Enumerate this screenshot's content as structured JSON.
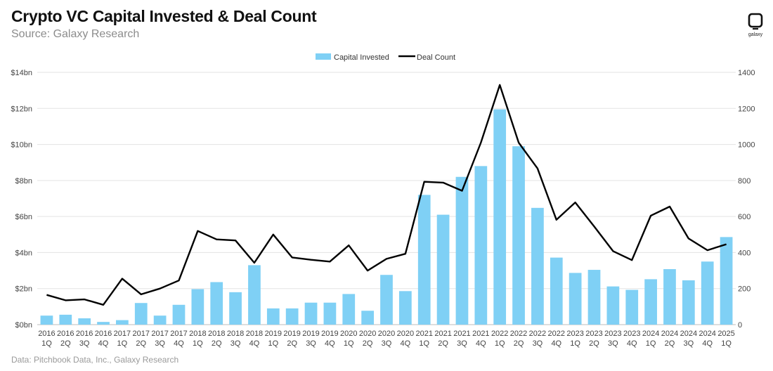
{
  "header": {
    "title": "Crypto VC Capital Invested & Deal Count",
    "subtitle": "Source: Galaxy Research"
  },
  "footer": {
    "note": "Data: Pitchbook Data, Inc., Galaxy Research"
  },
  "logo": {
    "text": "galaxy",
    "icon": "galaxy-logo-icon"
  },
  "colors": {
    "bar": "#7fd0f5",
    "line": "#000000",
    "grid": "#e3e3e3"
  },
  "chart_data": {
    "type": "bar",
    "title": "Crypto VC Capital Invested & Deal Count",
    "subtitle": "Source: Galaxy Research",
    "legend": {
      "position": "top-center",
      "entries": [
        "Capital Invested",
        "Deal Count"
      ]
    },
    "grid": true,
    "y_left": {
      "ylim": [
        0,
        14
      ],
      "ticks": [
        "$0bn",
        "$2bn",
        "$4bn",
        "$6bn",
        "$8bn",
        "$10bn",
        "$12bn",
        "$14bn"
      ]
    },
    "y_right": {
      "ylim": [
        0,
        1400
      ],
      "ticks": [
        "0",
        "200",
        "400",
        "600",
        "800",
        "1000",
        "1200",
        "1400"
      ]
    },
    "categories": [
      [
        "2016",
        "1Q"
      ],
      [
        "2016",
        "2Q"
      ],
      [
        "2016",
        "3Q"
      ],
      [
        "2016",
        "4Q"
      ],
      [
        "2017",
        "1Q"
      ],
      [
        "2017",
        "2Q"
      ],
      [
        "2017",
        "3Q"
      ],
      [
        "2017",
        "4Q"
      ],
      [
        "2018",
        "1Q"
      ],
      [
        "2018",
        "2Q"
      ],
      [
        "2018",
        "3Q"
      ],
      [
        "2018",
        "4Q"
      ],
      [
        "2019",
        "1Q"
      ],
      [
        "2019",
        "2Q"
      ],
      [
        "2019",
        "3Q"
      ],
      [
        "2019",
        "4Q"
      ],
      [
        "2020",
        "1Q"
      ],
      [
        "2020",
        "2Q"
      ],
      [
        "2020",
        "3Q"
      ],
      [
        "2020",
        "4Q"
      ],
      [
        "2021",
        "1Q"
      ],
      [
        "2021",
        "2Q"
      ],
      [
        "2021",
        "3Q"
      ],
      [
        "2021",
        "4Q"
      ],
      [
        "2022",
        "1Q"
      ],
      [
        "2022",
        "2Q"
      ],
      [
        "2022",
        "3Q"
      ],
      [
        "2022",
        "4Q"
      ],
      [
        "2023",
        "1Q"
      ],
      [
        "2023",
        "2Q"
      ],
      [
        "2023",
        "3Q"
      ],
      [
        "2023",
        "4Q"
      ],
      [
        "2024",
        "1Q"
      ],
      [
        "2024",
        "2Q"
      ],
      [
        "2024",
        "3Q"
      ],
      [
        "2024",
        "4Q"
      ],
      [
        "2025",
        "1Q"
      ]
    ],
    "series": [
      {
        "name": "Capital Invested",
        "type": "bar",
        "axis": "left",
        "values": [
          0.5,
          0.55,
          0.35,
          0.15,
          0.25,
          1.2,
          0.5,
          1.1,
          1.97,
          2.36,
          1.8,
          3.3,
          0.9,
          0.9,
          1.22,
          1.22,
          1.7,
          0.77,
          2.76,
          1.86,
          7.2,
          6.1,
          8.2,
          8.8,
          11.95,
          9.9,
          6.48,
          3.72,
          2.87,
          3.04,
          2.12,
          1.93,
          2.52,
          3.08,
          2.46,
          3.5,
          4.86
        ]
      },
      {
        "name": "Deal Count",
        "type": "line",
        "axis": "right",
        "values": [
          165,
          135,
          140,
          110,
          255,
          168,
          200,
          245,
          520,
          473,
          467,
          343,
          500,
          373,
          360,
          350,
          440,
          300,
          365,
          393,
          793,
          788,
          743,
          1010,
          1330,
          1010,
          867,
          582,
          678,
          545,
          408,
          358,
          605,
          655,
          478,
          413,
          446
        ]
      }
    ]
  }
}
